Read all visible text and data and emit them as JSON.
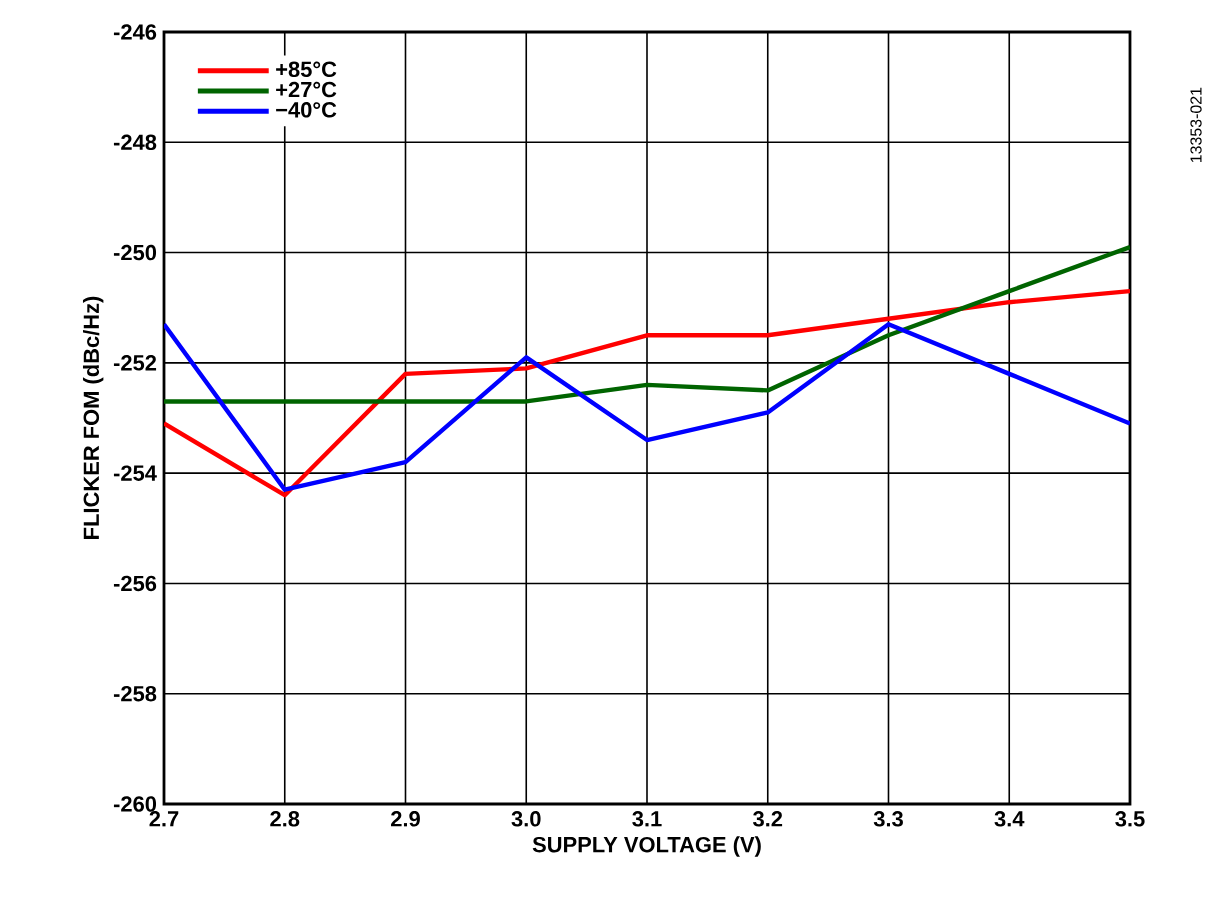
{
  "chart_data": {
    "type": "line",
    "xlabel": "SUPPLY VOLTAGE (V)",
    "ylabel": "FLICKER FOM (dBc/Hz)",
    "x": [
      2.7,
      2.8,
      2.9,
      3.0,
      3.1,
      3.2,
      3.3,
      3.4,
      3.5
    ],
    "series": [
      {
        "name": "+85°C",
        "color": "#ff0000",
        "values": [
          -253.1,
          -254.4,
          -252.2,
          -252.1,
          -251.5,
          -251.5,
          -251.2,
          -250.9,
          -250.7
        ]
      },
      {
        "name": "+27°C",
        "color": "#006400",
        "values": [
          -252.7,
          -252.7,
          -252.7,
          -252.7,
          -252.4,
          -252.5,
          -251.5,
          -250.7,
          -249.9
        ]
      },
      {
        "name": "−40°C",
        "color": "#0000ff",
        "values": [
          -251.3,
          -254.3,
          -253.8,
          -251.9,
          -253.4,
          -252.9,
          -251.3,
          -252.2,
          -253.1
        ]
      }
    ],
    "xlim": [
      2.7,
      3.5
    ],
    "ylim": [
      -260,
      -246
    ],
    "xticks": [
      2.7,
      2.8,
      2.9,
      {
        "value": 3.0,
        "label": "3.0"
      },
      3.1,
      3.2,
      3.3,
      3.4,
      3.5
    ],
    "yticks": [
      -260,
      -258,
      -256,
      -254,
      -252,
      -250,
      -248,
      -246
    ],
    "grid": true,
    "legend": "top left",
    "annotations": [
      "13353-021"
    ]
  }
}
